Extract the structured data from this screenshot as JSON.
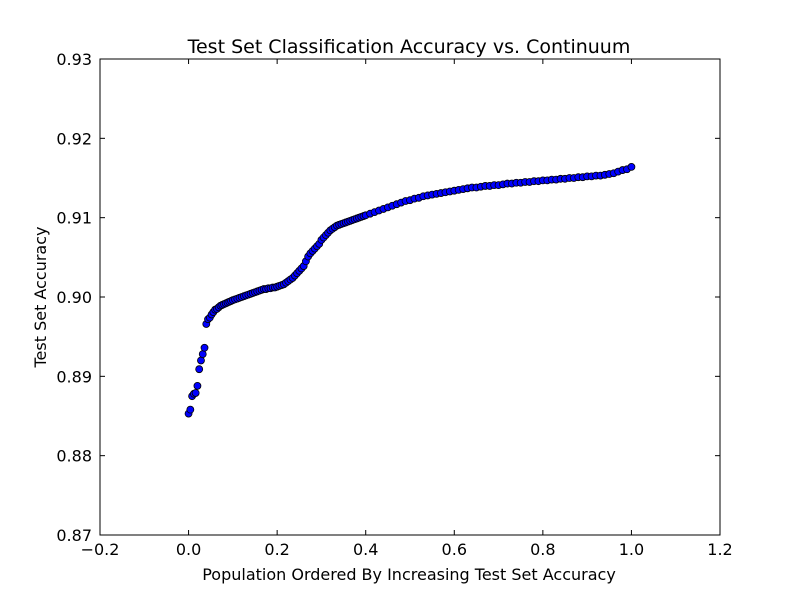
{
  "chart_data": {
    "type": "scatter",
    "title": "Test Set Classification Accuracy vs. Continuum",
    "xlabel": "Population Ordered By Increasing Test Set Accuracy",
    "ylabel": "Test Set Accuracy",
    "xlim": [
      -0.2,
      1.2
    ],
    "ylim": [
      0.87,
      0.93
    ],
    "x_ticks": [
      "−0.2",
      "0.0",
      "0.2",
      "0.4",
      "0.6",
      "0.8",
      "1.0",
      "1.2"
    ],
    "y_ticks": [
      "0.87",
      "0.88",
      "0.89",
      "0.90",
      "0.91",
      "0.92",
      "0.93"
    ],
    "grid": false,
    "marker_color": "#0000ff",
    "marker_edge_color": "#000000",
    "x": [
      0.0,
      0.004,
      0.008,
      0.012,
      0.016,
      0.02,
      0.024,
      0.028,
      0.032,
      0.036,
      0.04,
      0.044,
      0.048,
      0.052,
      0.056,
      0.06,
      0.064,
      0.068,
      0.072,
      0.076,
      0.08,
      0.084,
      0.088,
      0.092,
      0.096,
      0.1,
      0.105,
      0.11,
      0.115,
      0.12,
      0.125,
      0.13,
      0.135,
      0.14,
      0.145,
      0.15,
      0.155,
      0.16,
      0.165,
      0.17,
      0.175,
      0.18,
      0.185,
      0.19,
      0.195,
      0.2,
      0.205,
      0.21,
      0.215,
      0.22,
      0.225,
      0.23,
      0.235,
      0.24,
      0.245,
      0.25,
      0.255,
      0.26,
      0.265,
      0.27,
      0.275,
      0.28,
      0.285,
      0.29,
      0.295,
      0.3,
      0.305,
      0.31,
      0.315,
      0.32,
      0.325,
      0.33,
      0.335,
      0.34,
      0.345,
      0.35,
      0.355,
      0.36,
      0.365,
      0.37,
      0.375,
      0.38,
      0.385,
      0.39,
      0.395,
      0.4,
      0.41,
      0.42,
      0.43,
      0.44,
      0.45,
      0.46,
      0.47,
      0.48,
      0.49,
      0.5,
      0.51,
      0.52,
      0.53,
      0.54,
      0.55,
      0.56,
      0.57,
      0.58,
      0.59,
      0.6,
      0.61,
      0.62,
      0.63,
      0.64,
      0.65,
      0.66,
      0.67,
      0.68,
      0.69,
      0.7,
      0.71,
      0.72,
      0.73,
      0.74,
      0.75,
      0.76,
      0.77,
      0.78,
      0.79,
      0.8,
      0.81,
      0.82,
      0.83,
      0.84,
      0.85,
      0.86,
      0.87,
      0.88,
      0.89,
      0.9,
      0.91,
      0.92,
      0.93,
      0.94,
      0.95,
      0.96,
      0.97,
      0.98,
      0.99,
      1.0
    ],
    "y": [
      0.8853,
      0.8858,
      0.8875,
      0.8878,
      0.8879,
      0.8888,
      0.8909,
      0.892,
      0.8928,
      0.8936,
      0.8966,
      0.8972,
      0.8974,
      0.8978,
      0.8981,
      0.8984,
      0.8985,
      0.8987,
      0.8989,
      0.899,
      0.8991,
      0.8992,
      0.8993,
      0.8994,
      0.8995,
      0.8996,
      0.8997,
      0.8998,
      0.8999,
      0.9,
      0.9001,
      0.9002,
      0.9003,
      0.9004,
      0.9005,
      0.9006,
      0.9007,
      0.9008,
      0.9009,
      0.901,
      0.901,
      0.9011,
      0.9011,
      0.9012,
      0.9012,
      0.9013,
      0.9014,
      0.9015,
      0.9016,
      0.9018,
      0.902,
      0.9022,
      0.9024,
      0.9027,
      0.903,
      0.9033,
      0.9036,
      0.9039,
      0.9045,
      0.9051,
      0.9055,
      0.9058,
      0.9061,
      0.9064,
      0.9067,
      0.9072,
      0.9075,
      0.9078,
      0.9081,
      0.9084,
      0.9086,
      0.9088,
      0.909,
      0.9091,
      0.9092,
      0.9093,
      0.9094,
      0.9095,
      0.9096,
      0.9097,
      0.9098,
      0.9099,
      0.91,
      0.9101,
      0.9102,
      0.9103,
      0.9105,
      0.9107,
      0.9109,
      0.9111,
      0.9113,
      0.9115,
      0.9117,
      0.9119,
      0.9121,
      0.9122,
      0.9124,
      0.9125,
      0.9127,
      0.9128,
      0.9129,
      0.913,
      0.9131,
      0.9132,
      0.9133,
      0.9134,
      0.9135,
      0.9136,
      0.9137,
      0.9138,
      0.9138,
      0.9139,
      0.914,
      0.914,
      0.9141,
      0.9141,
      0.9142,
      0.9143,
      0.9143,
      0.9144,
      0.9144,
      0.9145,
      0.9145,
      0.9146,
      0.9146,
      0.9147,
      0.9147,
      0.9148,
      0.9148,
      0.9149,
      0.9149,
      0.915,
      0.915,
      0.9151,
      0.9151,
      0.9152,
      0.9152,
      0.9153,
      0.9153,
      0.9154,
      0.9155,
      0.9156,
      0.9158,
      0.916,
      0.9161,
      0.9164
    ]
  }
}
